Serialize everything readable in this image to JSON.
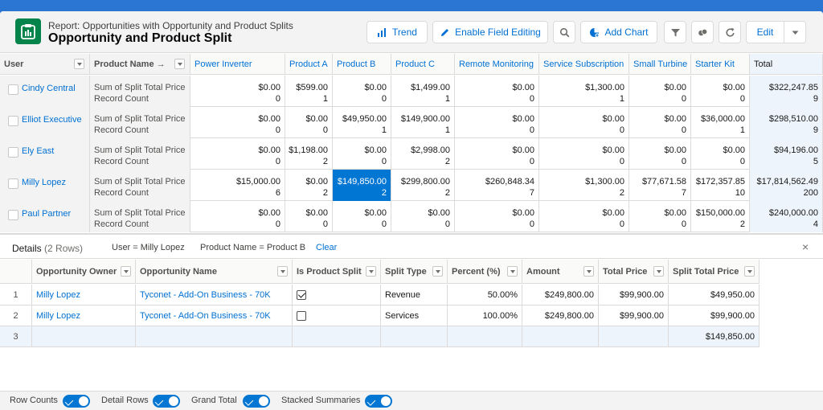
{
  "header": {
    "eyebrow": "Report: Opportunities with Opportunity and Product Splits",
    "title": "Opportunity and Product Split",
    "trend_label": "Trend",
    "field_editing_label": "Enable Field Editing",
    "add_chart_label": "Add Chart",
    "edit_label": "Edit"
  },
  "matrix": {
    "row_dim_1": "User",
    "row_dim_2": "Product Name →",
    "columns": [
      "Power Inverter",
      "Product A",
      "Product B",
      "Product C",
      "Remote Monitoring",
      "Service Subscription",
      "Small Turbine",
      "Starter Kit",
      "Total"
    ],
    "measure_1": "Sum of Split Total Price",
    "measure_2": "Record Count",
    "rows": [
      {
        "user": "Cindy Central",
        "sums": [
          "$0.00",
          "$599.00",
          "$0.00",
          "$1,499.00",
          "$0.00",
          "$1,300.00",
          "$0.00",
          "$0.00",
          "$322,247.85"
        ],
        "counts": [
          "0",
          "1",
          "0",
          "1",
          "0",
          "1",
          "0",
          "0",
          "9"
        ]
      },
      {
        "user": "Elliot Executive",
        "sums": [
          "$0.00",
          "$0.00",
          "$49,950.00",
          "$149,900.00",
          "$0.00",
          "$0.00",
          "$0.00",
          "$36,000.00",
          "$298,510.00"
        ],
        "counts": [
          "0",
          "0",
          "1",
          "1",
          "0",
          "0",
          "0",
          "1",
          "9"
        ]
      },
      {
        "user": "Ely East",
        "sums": [
          "$0.00",
          "$1,198.00",
          "$0.00",
          "$2,998.00",
          "$0.00",
          "$0.00",
          "$0.00",
          "$0.00",
          "$94,196.00"
        ],
        "counts": [
          "0",
          "2",
          "0",
          "2",
          "0",
          "0",
          "0",
          "0",
          "5"
        ]
      },
      {
        "user": "Milly Lopez",
        "sums": [
          "$15,000.00",
          "$0.00",
          "$149,850.00",
          "$299,800.00",
          "$260,848.34",
          "$1,300.00",
          "$77,671.58",
          "$172,357.85",
          "$17,814,562.49"
        ],
        "counts": [
          "6",
          "2",
          "2",
          "2",
          "7",
          "2",
          "7",
          "10",
          "200"
        ]
      },
      {
        "user": "Paul Partner",
        "sums": [
          "$0.00",
          "$0.00",
          "$0.00",
          "$0.00",
          "$0.00",
          "$0.00",
          "$0.00",
          "$150,000.00",
          "$240,000.00"
        ],
        "counts": [
          "0",
          "0",
          "0",
          "0",
          "0",
          "0",
          "0",
          "2",
          "4"
        ]
      }
    ]
  },
  "details": {
    "title": "Details",
    "row_count": "(2 Rows)",
    "filter_user": "User = Milly Lopez",
    "filter_product": "Product Name = Product B",
    "clear_label": "Clear",
    "close_glyph": "×",
    "columns": [
      "Opportunity Owner",
      "Opportunity Name",
      "Is Product Split",
      "Split Type",
      "Percent (%)",
      "Amount",
      "Total Price",
      "Split Total Price"
    ],
    "rows": [
      {
        "num": "1",
        "owner": "Milly Lopez",
        "name": "Tyconet - Add-On Business - 70K",
        "split": true,
        "type": "Revenue",
        "percent": "50.00%",
        "amount": "$249,800.00",
        "total": "$99,900.00",
        "split_total": "$49,950.00"
      },
      {
        "num": "2",
        "owner": "Milly Lopez",
        "name": "Tyconet - Add-On Business - 70K",
        "split": false,
        "type": "Services",
        "percent": "100.00%",
        "amount": "$249,800.00",
        "total": "$99,900.00",
        "split_total": "$99,900.00"
      }
    ],
    "total_row": {
      "num": "3",
      "split_total": "$149,850.00"
    }
  },
  "footer": {
    "row_counts": "Row Counts",
    "detail_rows": "Detail Rows",
    "grand_total": "Grand Total",
    "stacked_summaries": "Stacked Summaries"
  },
  "colors": {
    "accent": "#0176d3",
    "report_icon": "#04844b",
    "link": "#0070d2"
  }
}
